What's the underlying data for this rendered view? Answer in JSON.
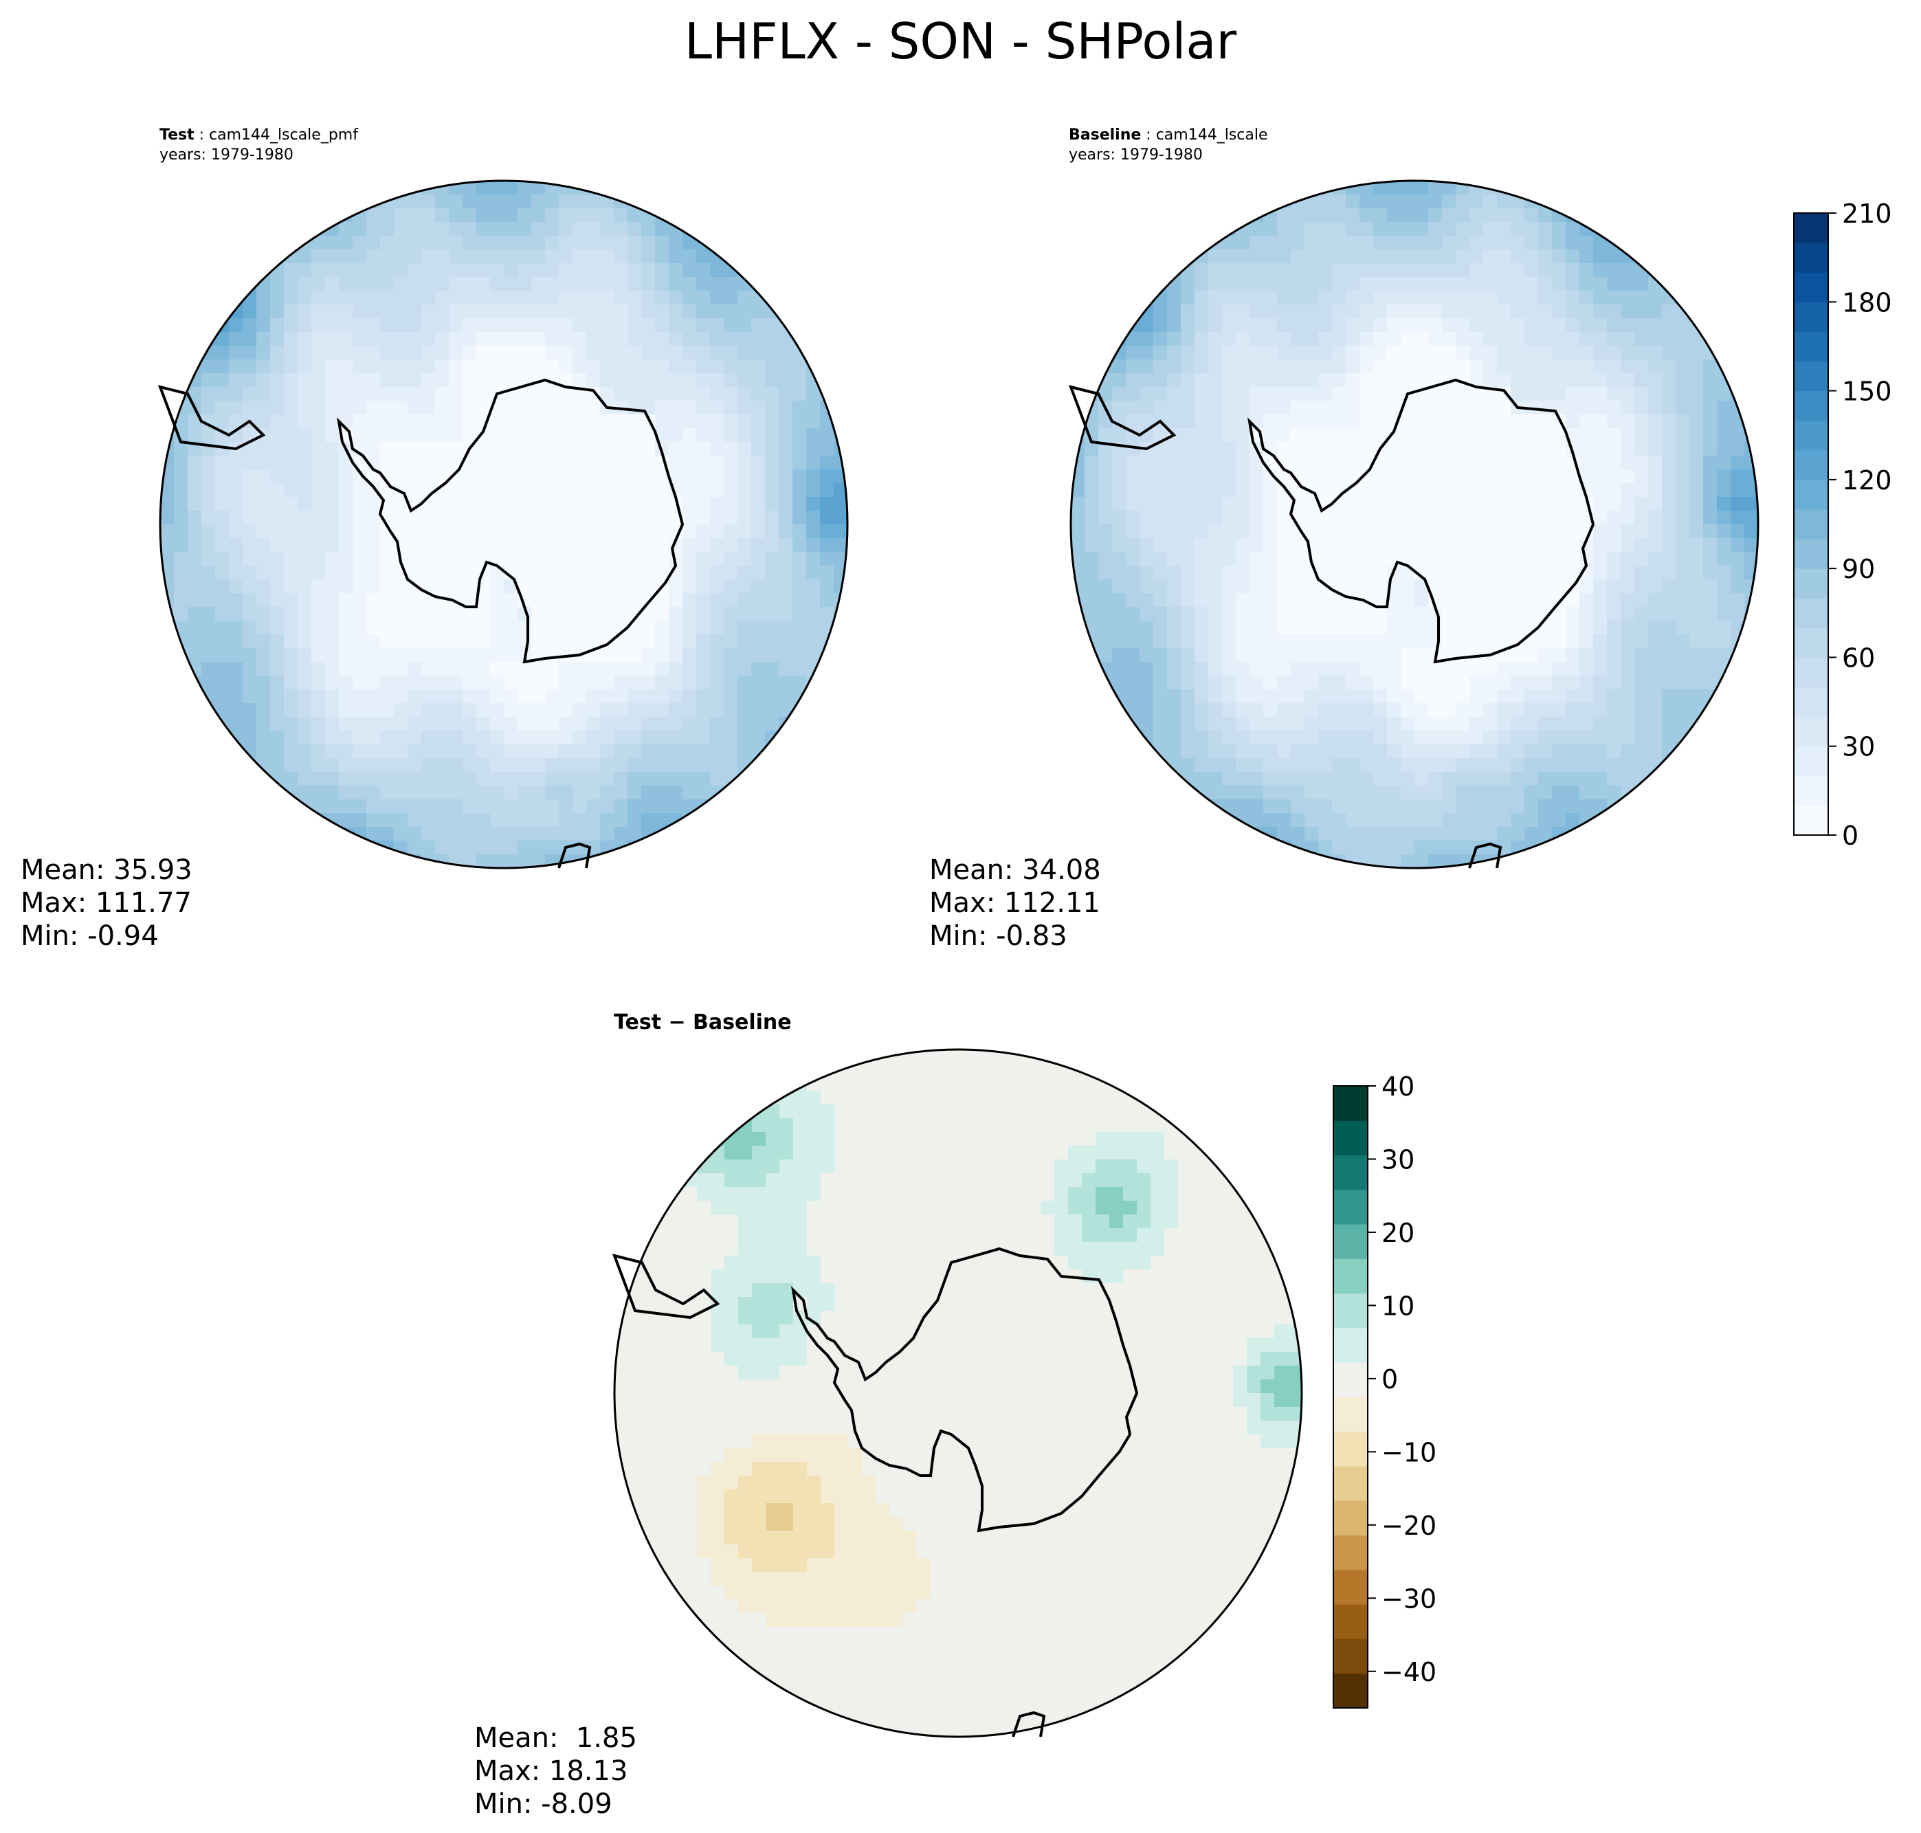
{
  "title": "LHFLX - SON - SHPolar",
  "panels": [
    {
      "id": "test",
      "header_bold": "Test",
      "header_sep": " : ",
      "header_case": "cam144_lscale_pmf",
      "header_years": "years: 1979-1980",
      "stats": {
        "mean": "Mean: 35.93",
        "max": "Max: 111.77",
        "min": "Min: -0.94"
      }
    },
    {
      "id": "baseline",
      "header_bold": "Baseline",
      "header_sep": " : ",
      "header_case": "cam144_lscale",
      "header_years": "years: 1979-1980",
      "stats": {
        "mean": "Mean: 34.08",
        "max": "Max: 112.11",
        "min": "Min: -0.83"
      }
    },
    {
      "id": "diff",
      "header_bold": "Test − Baseline",
      "stats": {
        "mean": "Mean:  1.85",
        "max": "Max: 18.13",
        "min": "Min: -8.09"
      }
    }
  ],
  "chart_data": [
    {
      "type": "heatmap",
      "panel": "test",
      "projection": "south polar stereographic",
      "stats": {
        "mean": 35.93,
        "max": 111.77,
        "min": -0.94
      }
    },
    {
      "type": "heatmap",
      "panel": "baseline",
      "projection": "south polar stereographic",
      "stats": {
        "mean": 34.08,
        "max": 112.11,
        "min": -0.83
      }
    },
    {
      "type": "heatmap",
      "panel": "diff",
      "projection": "south polar stereographic",
      "stats": {
        "mean": 1.85,
        "max": 18.13,
        "min": -8.09
      }
    }
  ],
  "colorbars": {
    "main": {
      "range": [
        0,
        210
      ],
      "levels": 21,
      "ticks": [
        "0",
        "30",
        "60",
        "90",
        "120",
        "150",
        "180",
        "210"
      ],
      "colors": [
        "#f7fbff",
        "#eef5fc",
        "#e4eff9",
        "#dbe9f6",
        "#d2e3f3",
        "#c9ddf0",
        "#bed8ec",
        "#b1d2e7",
        "#a1cbe2",
        "#8fc1de",
        "#7db8da",
        "#6aaed6",
        "#5ba3d0",
        "#4b98ca",
        "#3d8dc4",
        "#2e7ebc",
        "#2070b4",
        "#1562a9",
        "#0a549e",
        "#08468b",
        "#083573"
      ]
    },
    "diff": {
      "range": [
        -45,
        40
      ],
      "ticks": [
        "40",
        "30",
        "20",
        "10",
        "0",
        "−10",
        "−20",
        "−30",
        "−40"
      ],
      "colors": [
        "#543005",
        "#7c4a0a",
        "#985f14",
        "#b5782a",
        "#c99548",
        "#dbb66f",
        "#e8cc90",
        "#f3e1b6",
        "#f5ecd6",
        "#eef1ec",
        "#d4eeea",
        "#b2e2da",
        "#86cfc1",
        "#5ab3a6",
        "#31958b",
        "#147771",
        "#015c53",
        "#003c30"
      ]
    }
  }
}
